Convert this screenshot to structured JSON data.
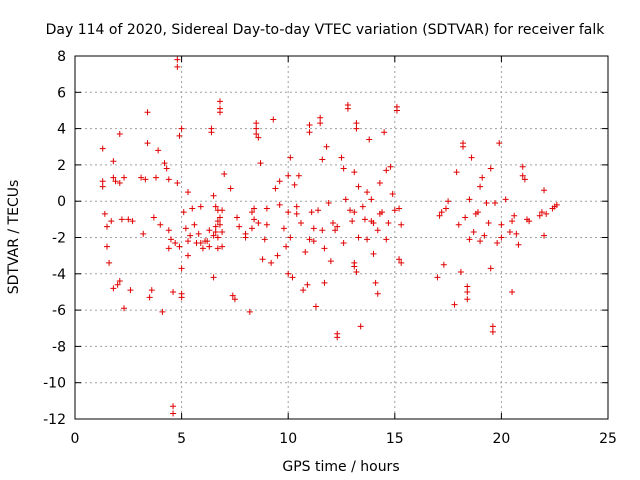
{
  "chart_data": {
    "type": "scatter",
    "title": "Day 114 of 2020, Sidereal Day-to-day VTEC variation (SDTVAR) for receiver falk",
    "xlabel": "GPS time / hours",
    "ylabel": "SDTVAR / TECUs",
    "xlim": [
      0,
      25
    ],
    "ylim": [
      -12,
      8
    ],
    "xticks": [
      0,
      5,
      10,
      15,
      20,
      25
    ],
    "yticks": [
      -12,
      -10,
      -8,
      -6,
      -4,
      -2,
      0,
      2,
      4,
      6,
      8
    ],
    "xtick_labels": [
      "0",
      "5",
      "10",
      "15",
      "20",
      "25"
    ],
    "ytick_labels": [
      "-12",
      "-10",
      "-8",
      "-6",
      "-4",
      "-2",
      "0",
      "2",
      "4",
      "6",
      "8"
    ],
    "grid": true,
    "marker": "+",
    "marker_color": "#e00000",
    "series": [
      {
        "name": "SDTVAR",
        "points": [
          [
            1.3,
            2.9
          ],
          [
            1.3,
            1.1
          ],
          [
            1.3,
            0.8
          ],
          [
            1.4,
            -0.7
          ],
          [
            1.5,
            -1.4
          ],
          [
            1.5,
            -2.5
          ],
          [
            1.6,
            -3.4
          ],
          [
            1.7,
            -1.1
          ],
          [
            1.8,
            2.2
          ],
          [
            1.8,
            1.3
          ],
          [
            1.8,
            -4.8
          ],
          [
            2.0,
            -4.6
          ],
          [
            2.1,
            3.7
          ],
          [
            2.1,
            1.0
          ],
          [
            2.1,
            -4.4
          ],
          [
            2.2,
            -1.0
          ],
          [
            2.3,
            -5.9
          ],
          [
            2.3,
            1.3
          ],
          [
            2.5,
            -1.0
          ],
          [
            2.6,
            -4.9
          ],
          [
            3.1,
            1.3
          ],
          [
            3.2,
            -1.8
          ],
          [
            3.4,
            4.9
          ],
          [
            3.4,
            3.2
          ],
          [
            3.5,
            -5.3
          ],
          [
            3.6,
            -4.9
          ],
          [
            3.7,
            -0.9
          ],
          [
            3.8,
            1.3
          ],
          [
            3.9,
            2.8
          ],
          [
            4.0,
            -1.3
          ],
          [
            4.1,
            -6.1
          ],
          [
            4.2,
            2.1
          ],
          [
            4.3,
            1.8
          ],
          [
            4.4,
            -2.6
          ],
          [
            4.4,
            1.2
          ],
          [
            4.5,
            -2.1
          ],
          [
            4.6,
            -11.3
          ],
          [
            4.6,
            -11.7
          ],
          [
            4.6,
            -5.0
          ],
          [
            4.7,
            -2.3
          ],
          [
            4.8,
            7.8
          ],
          [
            4.8,
            7.4
          ],
          [
            4.8,
            1.0
          ],
          [
            4.9,
            3.6
          ],
          [
            4.9,
            -2.5
          ],
          [
            5.0,
            -5.1
          ],
          [
            5.0,
            -5.3
          ],
          [
            5.0,
            -3.7
          ],
          [
            5.0,
            4.0
          ],
          [
            5.1,
            -0.6
          ],
          [
            5.2,
            -1.5
          ],
          [
            5.3,
            -2.2
          ],
          [
            5.3,
            -3.0
          ],
          [
            5.3,
            0.5
          ],
          [
            5.5,
            -0.4
          ],
          [
            5.6,
            -1.3
          ],
          [
            5.7,
            -2.3
          ],
          [
            5.8,
            -1.8
          ],
          [
            5.9,
            -2.3
          ],
          [
            6.0,
            -2.6
          ],
          [
            6.1,
            -2.2
          ],
          [
            6.2,
            -2.2
          ],
          [
            6.3,
            -1.6
          ],
          [
            6.3,
            -2.5
          ],
          [
            6.4,
            4.0
          ],
          [
            6.4,
            3.8
          ],
          [
            6.5,
            0.3
          ],
          [
            6.5,
            -1.9
          ],
          [
            6.5,
            -4.2
          ],
          [
            6.6,
            -0.3
          ],
          [
            6.6,
            -1.7
          ],
          [
            6.7,
            -0.5
          ],
          [
            6.7,
            -2.0
          ],
          [
            6.7,
            -2.6
          ],
          [
            6.8,
            5.5
          ],
          [
            6.8,
            5.1
          ],
          [
            6.8,
            4.9
          ],
          [
            6.8,
            -1.3
          ],
          [
            6.9,
            -2.5
          ],
          [
            6.9,
            -0.5
          ],
          [
            7.0,
            1.5
          ],
          [
            7.3,
            0.7
          ],
          [
            7.4,
            -5.2
          ],
          [
            7.5,
            -5.4
          ],
          [
            7.6,
            -0.9
          ],
          [
            7.7,
            -1.4
          ],
          [
            8.0,
            -2.0
          ],
          [
            8.0,
            -1.8
          ],
          [
            8.2,
            -6.1
          ],
          [
            8.3,
            -1.5
          ],
          [
            8.3,
            -0.6
          ],
          [
            8.4,
            -0.4
          ],
          [
            8.4,
            -1.0
          ],
          [
            8.5,
            4.3
          ],
          [
            8.5,
            4.0
          ],
          [
            8.5,
            3.7
          ],
          [
            8.6,
            3.5
          ],
          [
            8.6,
            -1.2
          ],
          [
            8.7,
            2.1
          ],
          [
            8.8,
            -3.2
          ],
          [
            8.9,
            -2.1
          ],
          [
            9.0,
            -1.3
          ],
          [
            9.0,
            -0.4
          ],
          [
            9.2,
            -3.4
          ],
          [
            9.3,
            4.5
          ],
          [
            9.4,
            0.7
          ],
          [
            9.5,
            -3.0
          ],
          [
            9.6,
            1.1
          ],
          [
            9.6,
            -0.2
          ],
          [
            9.8,
            -1.5
          ],
          [
            9.9,
            -2.5
          ],
          [
            10.0,
            -4.0
          ],
          [
            10.0,
            1.4
          ],
          [
            10.0,
            -0.6
          ],
          [
            10.1,
            -2.0
          ],
          [
            10.1,
            2.4
          ],
          [
            10.2,
            -4.2
          ],
          [
            10.3,
            0.9
          ],
          [
            10.4,
            -0.3
          ],
          [
            10.5,
            1.4
          ],
          [
            10.6,
            -1.2
          ],
          [
            10.7,
            -4.9
          ],
          [
            10.8,
            -2.8
          ],
          [
            10.9,
            -4.6
          ],
          [
            11.0,
            4.2
          ],
          [
            11.0,
            3.8
          ],
          [
            11.1,
            -0.6
          ],
          [
            11.2,
            -1.5
          ],
          [
            11.2,
            -2.2
          ],
          [
            11.3,
            -5.8
          ],
          [
            11.4,
            -0.5
          ],
          [
            11.5,
            4.6
          ],
          [
            11.5,
            4.3
          ],
          [
            11.6,
            2.3
          ],
          [
            11.6,
            -1.6
          ],
          [
            11.7,
            -2.6
          ],
          [
            11.7,
            -4.5
          ],
          [
            11.8,
            3.0
          ],
          [
            11.9,
            -0.1
          ],
          [
            12.0,
            -3.3
          ],
          [
            12.1,
            -1.2
          ],
          [
            12.2,
            -1.6
          ],
          [
            12.3,
            -1.4
          ],
          [
            12.3,
            -7.3
          ],
          [
            12.3,
            -7.5
          ],
          [
            12.5,
            2.4
          ],
          [
            12.6,
            1.8
          ],
          [
            12.6,
            -2.3
          ],
          [
            12.7,
            0.1
          ],
          [
            12.8,
            5.3
          ],
          [
            12.8,
            5.1
          ],
          [
            12.9,
            -0.5
          ],
          [
            13.0,
            -1.1
          ],
          [
            13.1,
            1.6
          ],
          [
            13.1,
            -0.6
          ],
          [
            13.1,
            -3.4
          ],
          [
            13.1,
            -3.6
          ],
          [
            13.2,
            4.3
          ],
          [
            13.2,
            4.0
          ],
          [
            13.2,
            -3.9
          ],
          [
            13.3,
            0.8
          ],
          [
            13.3,
            -2.0
          ],
          [
            13.4,
            -6.9
          ],
          [
            13.5,
            -0.3
          ],
          [
            13.6,
            -1.0
          ],
          [
            13.7,
            0.5
          ],
          [
            13.7,
            -2.1
          ],
          [
            13.8,
            3.4
          ],
          [
            13.9,
            0.1
          ],
          [
            13.9,
            -1.1
          ],
          [
            14.0,
            -2.9
          ],
          [
            14.0,
            -1.2
          ],
          [
            14.1,
            -4.5
          ],
          [
            14.2,
            -1.6
          ],
          [
            14.2,
            -5.1
          ],
          [
            14.3,
            -0.7
          ],
          [
            14.3,
            1.0
          ],
          [
            14.4,
            -0.6
          ],
          [
            14.5,
            3.8
          ],
          [
            14.6,
            -2.1
          ],
          [
            14.6,
            1.7
          ],
          [
            14.7,
            -1.2
          ],
          [
            14.8,
            1.9
          ],
          [
            14.9,
            0.4
          ],
          [
            15.0,
            -0.5
          ],
          [
            15.1,
            5.2
          ],
          [
            15.1,
            5.0
          ],
          [
            15.2,
            -0.4
          ],
          [
            15.2,
            -3.2
          ],
          [
            15.3,
            -1.3
          ],
          [
            15.3,
            -3.4
          ],
          [
            17.0,
            -4.2
          ],
          [
            17.1,
            -0.8
          ],
          [
            17.2,
            -0.6
          ],
          [
            17.3,
            -3.5
          ],
          [
            17.4,
            -0.4
          ],
          [
            17.5,
            0.0
          ],
          [
            17.8,
            -5.7
          ],
          [
            17.9,
            1.6
          ],
          [
            18.0,
            -1.3
          ],
          [
            18.1,
            -3.9
          ],
          [
            18.2,
            3.2
          ],
          [
            18.2,
            3.0
          ],
          [
            18.3,
            -0.9
          ],
          [
            18.4,
            -5.0
          ],
          [
            18.4,
            -5.4
          ],
          [
            18.4,
            -4.7
          ],
          [
            18.5,
            0.1
          ],
          [
            18.5,
            -2.1
          ],
          [
            18.6,
            2.4
          ],
          [
            18.7,
            -1.7
          ],
          [
            18.8,
            -0.7
          ],
          [
            18.9,
            -0.6
          ],
          [
            19.0,
            0.8
          ],
          [
            19.0,
            -2.2
          ],
          [
            19.1,
            1.3
          ],
          [
            19.2,
            -1.9
          ],
          [
            19.3,
            -0.1
          ],
          [
            19.4,
            -1.2
          ],
          [
            19.5,
            1.8
          ],
          [
            19.5,
            -3.7
          ],
          [
            19.6,
            -6.9
          ],
          [
            19.6,
            -7.2
          ],
          [
            19.7,
            -0.1
          ],
          [
            19.8,
            -2.3
          ],
          [
            19.9,
            3.2
          ],
          [
            20.0,
            -1.3
          ],
          [
            20.0,
            -2.0
          ],
          [
            20.2,
            0.1
          ],
          [
            20.4,
            -1.7
          ],
          [
            20.5,
            -1.1
          ],
          [
            20.5,
            -5.0
          ],
          [
            20.6,
            -0.8
          ],
          [
            20.7,
            -1.8
          ],
          [
            20.8,
            -2.4
          ],
          [
            21.0,
            1.9
          ],
          [
            21.0,
            1.4
          ],
          [
            21.1,
            1.2
          ],
          [
            21.2,
            -1.0
          ],
          [
            21.3,
            -1.1
          ],
          [
            21.8,
            -0.8
          ],
          [
            21.9,
            -0.6
          ],
          [
            22.0,
            -1.9
          ],
          [
            22.0,
            0.6
          ],
          [
            22.1,
            -0.7
          ],
          [
            22.5,
            -0.3
          ],
          [
            22.6,
            -0.2
          ],
          [
            22.4,
            -0.4
          ],
          [
            6.6,
            -1.4
          ],
          [
            6.7,
            -1.1
          ],
          [
            6.8,
            -0.9
          ],
          [
            6.9,
            -1.7
          ],
          [
            5.9,
            -0.3
          ],
          [
            5.4,
            -1.9
          ],
          [
            4.4,
            -1.6
          ],
          [
            3.3,
            1.2
          ],
          [
            2.7,
            -1.1
          ],
          [
            1.9,
            1.1
          ],
          [
            11.0,
            -2.1
          ],
          [
            10.4,
            -0.7
          ]
        ]
      }
    ]
  }
}
